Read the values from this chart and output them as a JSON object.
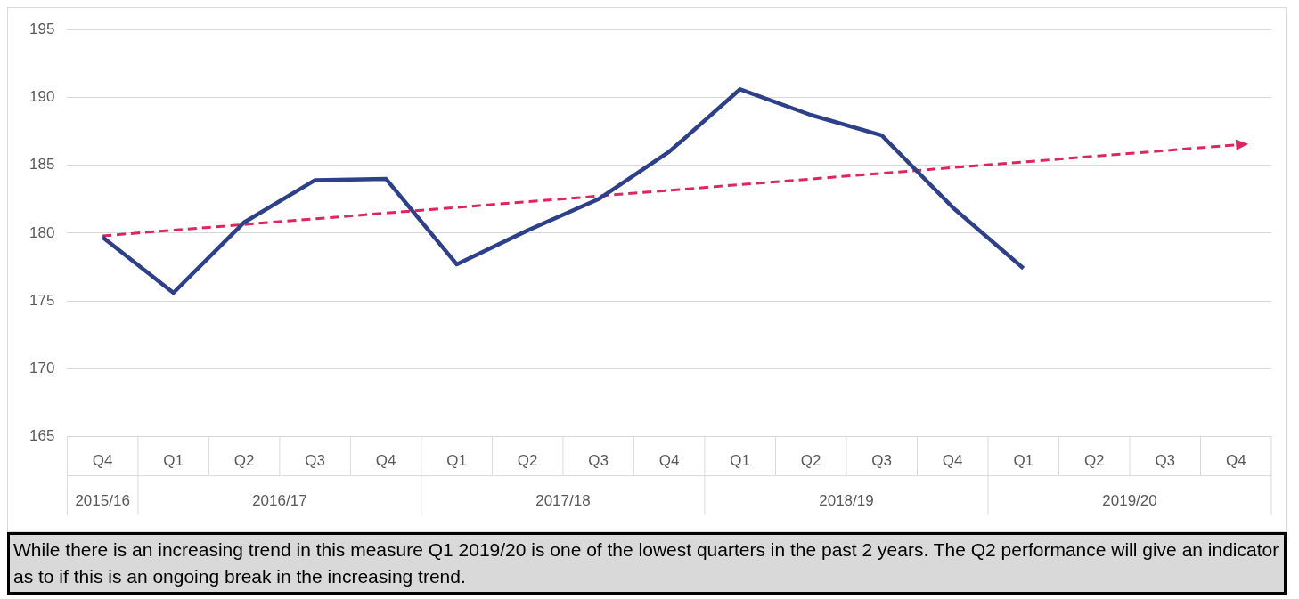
{
  "chart_data": {
    "type": "line",
    "categories": [
      "Q4",
      "Q1",
      "Q2",
      "Q3",
      "Q4",
      "Q1",
      "Q2",
      "Q3",
      "Q4",
      "Q1",
      "Q2",
      "Q3",
      "Q4",
      "Q1",
      "Q2",
      "Q3",
      "Q4"
    ],
    "series": [
      {
        "color": "#2e4089",
        "values": [
          179.7,
          175.6,
          180.8,
          183.9,
          184.0,
          177.7,
          180.2,
          182.5,
          186.0,
          190.6,
          188.7,
          187.2,
          181.9,
          177.4,
          null,
          null,
          null
        ]
      },
      {
        "type": "line",
        "color": "#e0245e",
        "line_style": "dashed",
        "values": [
          179.8,
          null,
          null,
          null,
          null,
          null,
          null,
          null,
          null,
          null,
          null,
          null,
          null,
          null,
          null,
          null,
          186.5
        ]
      }
    ],
    "ylim": [
      165,
      195
    ],
    "yticks": [
      165,
      170,
      175,
      180,
      185,
      190,
      195
    ],
    "grid": "y",
    "legend": false,
    "annotations": [
      "2015/16",
      "2016/17",
      "2017/18",
      "2018/19",
      "2019/20",
      "While there is an increasing trend in this measure Q1 2019/20 is one of the lowest quarters in the past 2 years. The Q2 performance will give an indicator as to if this is an ongoing break in the increasing trend."
    ]
  }
}
